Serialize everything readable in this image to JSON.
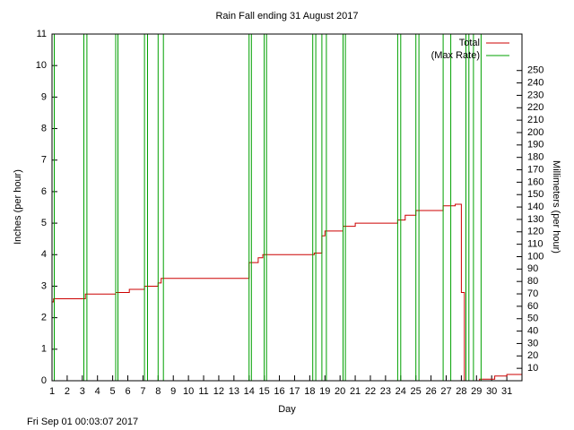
{
  "chart_data": {
    "type": "line",
    "title": "Rain Fall ending 31 August 2017",
    "xlabel": "Day",
    "ylabel": "Inches (per hour)",
    "y2label": "Millimeters (per hour)",
    "footer": "Fri Sep 01 00:03:07 2017",
    "xlim": [
      1,
      32
    ],
    "xticks": [
      1,
      2,
      3,
      4,
      5,
      6,
      7,
      8,
      9,
      10,
      11,
      12,
      13,
      14,
      15,
      16,
      17,
      18,
      19,
      20,
      21,
      22,
      23,
      24,
      25,
      26,
      27,
      28,
      29,
      30,
      31
    ],
    "ylim": [
      0,
      11
    ],
    "yticks": [
      0,
      1,
      2,
      3,
      4,
      5,
      6,
      7,
      8,
      9,
      10,
      11
    ],
    "y2lim": [
      0,
      279.4
    ],
    "y2ticks": [
      10,
      20,
      30,
      40,
      50,
      60,
      70,
      80,
      90,
      100,
      110,
      120,
      130,
      140,
      150,
      160,
      170,
      180,
      190,
      200,
      210,
      220,
      230,
      240,
      250
    ],
    "legend": "top-right",
    "series": [
      {
        "name": "Total",
        "color": "#cc0000",
        "x": [
          1,
          1.1,
          1.1,
          3.2,
          3.2,
          5.2,
          5.2,
          6.1,
          6.1,
          7.1,
          7.1,
          8.0,
          8.0,
          8.2,
          8.2,
          14.0,
          14.0,
          14.6,
          14.6,
          14.9,
          14.9,
          18.3,
          18.3,
          18.8,
          18.8,
          19.0,
          19.0,
          20.2,
          20.2,
          21.0,
          21.0,
          23.8,
          23.8,
          24.3,
          24.3,
          25.0,
          25.0,
          26.8,
          26.8,
          27.6,
          27.6,
          28.0,
          28.0,
          28.2,
          28.2,
          29.2,
          29.2,
          30.2,
          30.2,
          31.0,
          31.0,
          32
        ],
        "values": [
          2.5,
          2.5,
          2.6,
          2.6,
          2.75,
          2.75,
          2.8,
          2.8,
          2.9,
          2.9,
          3.0,
          3.0,
          3.1,
          3.1,
          3.25,
          3.25,
          3.75,
          3.75,
          3.9,
          3.9,
          4.0,
          4.0,
          4.05,
          4.05,
          4.6,
          4.6,
          4.75,
          4.75,
          4.9,
          4.9,
          5.0,
          5.0,
          5.1,
          5.1,
          5.25,
          5.25,
          5.4,
          5.4,
          5.55,
          5.55,
          5.6,
          5.6,
          2.8,
          2.8,
          0,
          0,
          0.05,
          0.05,
          0.15,
          0.15,
          0.2,
          0.2
        ]
      },
      {
        "name": "(Max Rate)",
        "color": "#00a000",
        "x": [
          1,
          1,
          1.15,
          1.15,
          3.1,
          3.1,
          3.3,
          3.3,
          5.2,
          5.2,
          5.35,
          5.35,
          7.1,
          7.1,
          7.3,
          7.3,
          8.0,
          8.0,
          8.35,
          8.35,
          14.0,
          14.0,
          14.15,
          14.15,
          15.0,
          15.0,
          15.15,
          15.15,
          18.2,
          18.2,
          18.4,
          18.4,
          18.8,
          18.8,
          19.1,
          19.1,
          20.2,
          20.2,
          20.35,
          20.35,
          23.8,
          23.8,
          24.0,
          24.0,
          25.0,
          25.0,
          25.2,
          25.2,
          26.8,
          26.8,
          27.3,
          27.3,
          28.3,
          28.3,
          28.5,
          28.5,
          28.8,
          28.8,
          29.3,
          29.3,
          32
        ],
        "values": [
          5.5,
          11,
          11,
          0,
          0,
          11,
          11,
          0,
          0,
          11,
          11,
          0,
          0,
          11,
          11,
          0,
          0,
          11,
          11,
          0,
          0,
          11,
          11,
          0,
          0,
          11,
          11,
          0,
          0,
          11,
          11,
          0,
          0,
          11,
          11,
          0,
          0,
          11,
          11,
          0,
          0,
          11,
          11,
          0,
          0,
          11,
          11,
          0,
          0,
          11,
          11,
          0,
          0,
          11,
          11,
          0,
          0,
          11,
          11,
          0,
          0
        ]
      }
    ]
  }
}
